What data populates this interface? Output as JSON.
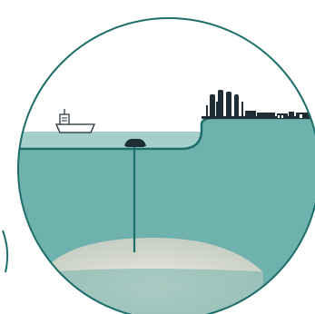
{
  "colors": {
    "sea_deep": "#6fb1ad",
    "sea_surface": "#a5cfcc",
    "outline": "#1d6e6a",
    "land_sky": "#ffffff",
    "reservoir_light": "#eeecdc",
    "reservoir_mid": "#c8cfc4",
    "structures": "#1f2d35",
    "vessel_fill": "#ffffff",
    "vessel_stroke": "#1f2d35"
  },
  "elements": {
    "vessel": "ship-icon",
    "plant": "onshore-processing-plant",
    "template": "subsea-template",
    "well": "well-bore",
    "reservoir": "reservoir-mound",
    "pipeline": "export-pipeline"
  }
}
